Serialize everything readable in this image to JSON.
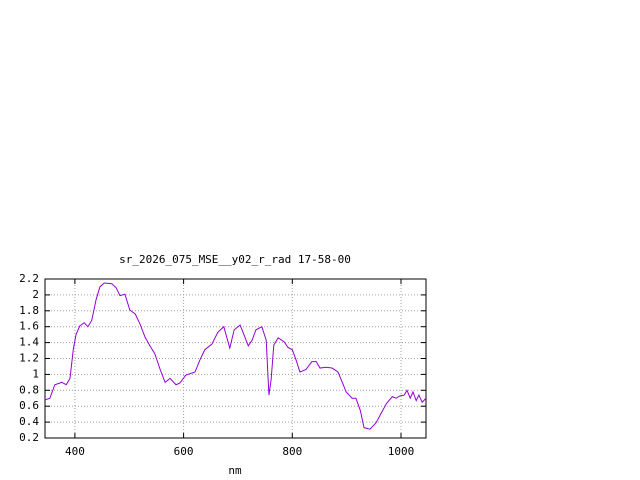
{
  "chart_data": {
    "type": "line",
    "title": "sr_2026_075_MSE__y02_r_rad 17-58-00",
    "x_label": "nm",
    "x": [
      345,
      354,
      363,
      376,
      384,
      391,
      397,
      402,
      409,
      417,
      424,
      431,
      439,
      446,
      454,
      468,
      476,
      483,
      492,
      501,
      511,
      520,
      529,
      538,
      547,
      557,
      566,
      575,
      586,
      593,
      604,
      621,
      630,
      639,
      652,
      663,
      674,
      685,
      693,
      704,
      711,
      719,
      726,
      733,
      744,
      752,
      757,
      761,
      766,
      774,
      785,
      792,
      800,
      807,
      814,
      825,
      836,
      844,
      851,
      862,
      873,
      884,
      892,
      899,
      910,
      917,
      925,
      932,
      943,
      954,
      965,
      973,
      984,
      991,
      998,
      1006,
      1011,
      1017,
      1022,
      1028,
      1033,
      1039,
      1046
    ],
    "series": [
      {
        "color": "#9400d3",
        "values": [
          0.68,
          0.7,
          0.87,
          0.9,
          0.87,
          0.95,
          1.31,
          1.5,
          1.61,
          1.65,
          1.6,
          1.68,
          1.94,
          2.1,
          2.15,
          2.14,
          2.09,
          1.99,
          2.01,
          1.81,
          1.76,
          1.63,
          1.47,
          1.36,
          1.26,
          1.06,
          0.9,
          0.95,
          0.87,
          0.89,
          0.99,
          1.03,
          1.18,
          1.31,
          1.38,
          1.53,
          1.6,
          1.33,
          1.56,
          1.62,
          1.5,
          1.36,
          1.43,
          1.56,
          1.6,
          1.43,
          0.74,
          0.93,
          1.37,
          1.46,
          1.41,
          1.34,
          1.31,
          1.18,
          1.03,
          1.06,
          1.16,
          1.16,
          1.08,
          1.09,
          1.08,
          1.03,
          0.9,
          0.78,
          0.7,
          0.7,
          0.55,
          0.33,
          0.31,
          0.39,
          0.53,
          0.63,
          0.72,
          0.7,
          0.73,
          0.74,
          0.8,
          0.7,
          0.78,
          0.67,
          0.74,
          0.65,
          0.7
        ]
      }
    ],
    "xlim": [
      345,
      1046
    ],
    "ylim": [
      0.2,
      2.2
    ],
    "xticks": [
      400,
      600,
      800,
      1000
    ],
    "yticks": [
      0.2,
      0.4,
      0.6,
      0.8,
      1,
      1.2,
      1.4,
      1.6,
      1.8,
      2,
      2.2
    ],
    "grid": true
  }
}
